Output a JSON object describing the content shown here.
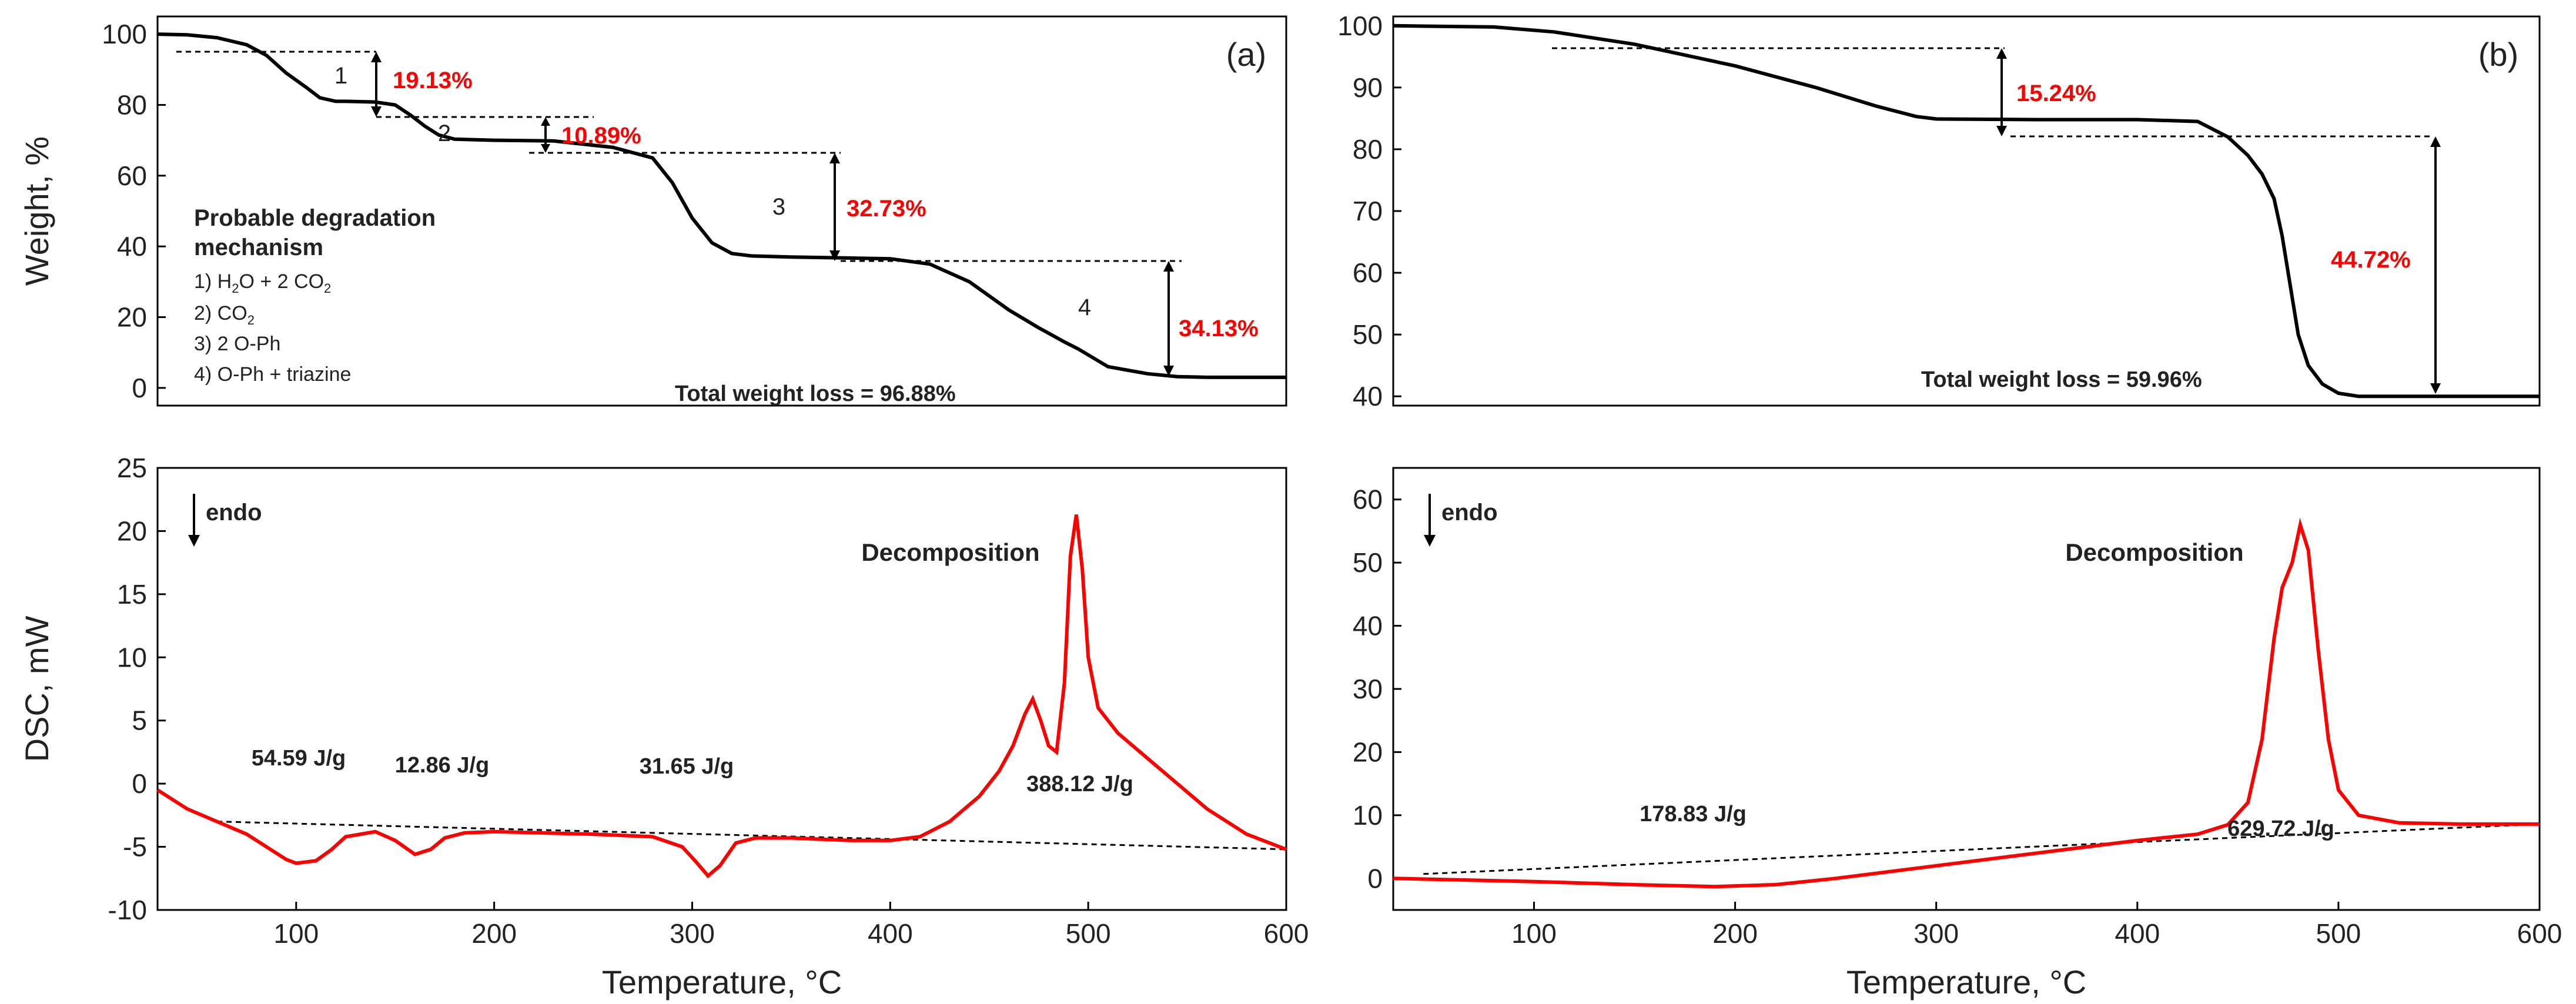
{
  "chart_data": [
    {
      "panel": "a-top",
      "type": "line",
      "panel_label": "(a)",
      "ylabel": "Weight, %",
      "xlim": [
        30,
        600
      ],
      "ylim": [
        -5,
        105
      ],
      "x_ticks": [],
      "y_ticks": [
        "0",
        "20",
        "40",
        "60",
        "80",
        "100"
      ],
      "y_tick_values": [
        0,
        20,
        40,
        60,
        80,
        100
      ],
      "series": [
        {
          "name": "TGA (a)",
          "color": "#000000",
          "x": [
            30,
            45,
            60,
            75,
            85,
            95,
            105,
            112,
            120,
            125,
            140,
            150,
            158,
            165,
            172,
            180,
            200,
            230,
            260,
            280,
            290,
            300,
            310,
            320,
            330,
            350,
            370,
            400,
            420,
            440,
            460,
            475,
            488,
            495,
            510,
            530,
            545,
            560,
            600
          ],
          "y": [
            100,
            99.8,
            99,
            97,
            94,
            89,
            85,
            82,
            81,
            81,
            80.8,
            80,
            77,
            74,
            71.5,
            70.3,
            70,
            69.8,
            68,
            65,
            58,
            48,
            41,
            38,
            37.3,
            37,
            36.8,
            36.5,
            35,
            30,
            22,
            17,
            13,
            11,
            6,
            4,
            3.2,
            3,
            3
          ]
        }
      ],
      "step_labels": [
        "1",
        "2",
        "3",
        "4"
      ],
      "loss_labels": [
        "19.13%",
        "10.89%",
        "32.73%",
        "34.13%"
      ],
      "mechanism": {
        "title_line1": "Probable degradation",
        "title_line2": "mechanism",
        "step1_prefix": "1) H",
        "step1_sub": "2",
        "step1_mid": "O + 2 CO",
        "step1_sub2": "2",
        "step2_prefix": "2) CO",
        "step2_sub": "2",
        "step3": "3) 2 O-Ph",
        "step4": "4) O-Ph + triazine"
      },
      "total_text": "Total weight loss = 96.88%"
    },
    {
      "panel": "b-top",
      "type": "line",
      "panel_label": "(b)",
      "ylabel": "",
      "xlim": [
        30,
        600
      ],
      "ylim": [
        38.5,
        101.5
      ],
      "x_ticks": [],
      "y_ticks": [
        "40",
        "50",
        "60",
        "70",
        "80",
        "90",
        "100"
      ],
      "y_tick_values": [
        40,
        50,
        60,
        70,
        80,
        90,
        100
      ],
      "series": [
        {
          "name": "TGA (b)",
          "color": "#000000",
          "x": [
            30,
            80,
            110,
            150,
            200,
            240,
            270,
            290,
            300,
            350,
            400,
            430,
            445,
            455,
            462,
            468,
            472,
            476,
            480,
            485,
            492,
            500,
            510,
            530,
            600
          ],
          "y": [
            100,
            99.8,
            99,
            97,
            93.5,
            90,
            87,
            85.3,
            84.9,
            84.8,
            84.8,
            84.5,
            82,
            79,
            76,
            72,
            66,
            58,
            50,
            45,
            42,
            40.5,
            40,
            40,
            40
          ]
        }
      ],
      "loss_labels": [
        "15.24%",
        "44.72%"
      ],
      "total_text": "Total weight loss = 59.96%"
    },
    {
      "panel": "a-bottom",
      "type": "line",
      "ylabel": "DSC, mW",
      "xlabel": "Temperature, °C",
      "xlim": [
        30,
        600
      ],
      "ylim": [
        -10,
        25
      ],
      "x_ticks": [
        "100",
        "200",
        "300",
        "400",
        "500",
        "600"
      ],
      "x_tick_values": [
        100,
        200,
        300,
        400,
        500,
        600
      ],
      "y_ticks": [
        "-10",
        "-5",
        "0",
        "5",
        "10",
        "15",
        "20",
        "25"
      ],
      "y_tick_values": [
        -10,
        -5,
        0,
        5,
        10,
        15,
        20,
        25
      ],
      "series": [
        {
          "name": "DSC (a)",
          "color": "#ff0000",
          "x": [
            30,
            45,
            60,
            75,
            85,
            95,
            100,
            110,
            118,
            125,
            140,
            150,
            160,
            168,
            175,
            185,
            200,
            250,
            280,
            295,
            302,
            308,
            314,
            322,
            332,
            350,
            380,
            400,
            415,
            430,
            445,
            455,
            462,
            468,
            472,
            476,
            480,
            484,
            488,
            491,
            494,
            497,
            500,
            505,
            515,
            530,
            545,
            560,
            580,
            600
          ],
          "y": [
            -0.5,
            -2,
            -3,
            -4,
            -5,
            -6,
            -6.3,
            -6.1,
            -5.2,
            -4.2,
            -3.8,
            -4.5,
            -5.6,
            -5.2,
            -4.3,
            -3.9,
            -3.8,
            -4,
            -4.2,
            -5,
            -6.2,
            -7.3,
            -6.5,
            -4.7,
            -4.3,
            -4.3,
            -4.5,
            -4.5,
            -4.2,
            -3,
            -1,
            1,
            3,
            5.5,
            6.7,
            5,
            3,
            2.5,
            8,
            18,
            21.3,
            17,
            10,
            6,
            4,
            2,
            0,
            -2,
            -4,
            -5.2
          ]
        }
      ],
      "baseline": {
        "x": [
          60,
          600
        ],
        "y": [
          -3,
          -5.2
        ]
      },
      "endo_text": "endo",
      "peak_text": "Decomposition",
      "enthalpy_labels": [
        "54.59 J/g",
        "12.86 J/g",
        "31.65 J/g",
        "388.12 J/g"
      ]
    },
    {
      "panel": "b-bottom",
      "type": "line",
      "ylabel": "",
      "xlabel": "Temperature, °C",
      "xlim": [
        30,
        600
      ],
      "ylim": [
        -5,
        65
      ],
      "x_ticks": [
        "100",
        "200",
        "300",
        "400",
        "500",
        "600"
      ],
      "x_tick_values": [
        100,
        200,
        300,
        400,
        500,
        600
      ],
      "y_ticks": [
        "0",
        "10",
        "20",
        "30",
        "40",
        "50",
        "60"
      ],
      "y_tick_values": [
        0,
        10,
        20,
        30,
        40,
        50,
        60
      ],
      "series": [
        {
          "name": "DSC (b)",
          "color": "#ff0000",
          "x": [
            30,
            100,
            150,
            190,
            220,
            250,
            300,
            350,
            400,
            430,
            445,
            455,
            462,
            468,
            472,
            477,
            481,
            485,
            490,
            495,
            500,
            510,
            530,
            560,
            600
          ],
          "y": [
            0,
            -0.5,
            -1,
            -1.3,
            -1,
            0,
            2,
            4,
            6,
            7,
            8.5,
            12,
            22,
            38,
            46,
            50,
            56,
            52,
            36,
            22,
            14,
            10,
            8.8,
            8.6,
            8.6
          ]
        }
      ],
      "baseline": {
        "x": [
          45,
          600
        ],
        "y": [
          0.7,
          8.6
        ]
      },
      "endo_text": "endo",
      "peak_text": "Decomposition",
      "enthalpy_labels": [
        "178.83 J/g",
        "629.72 J/g"
      ]
    }
  ]
}
